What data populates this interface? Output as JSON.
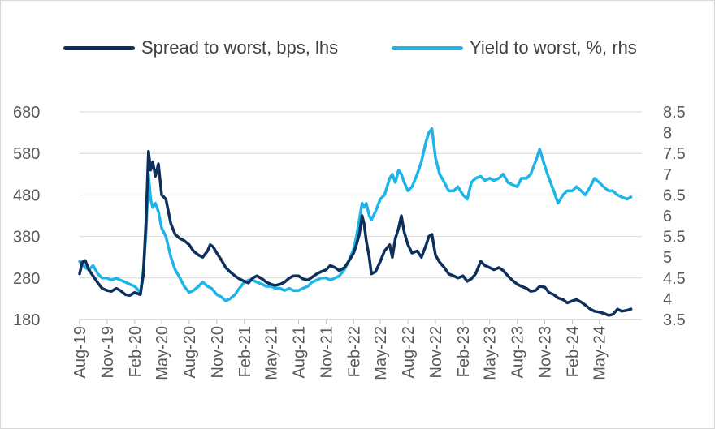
{
  "colors": {
    "spread": "#0d2f5c",
    "yield": "#1fb4e8",
    "grid": "#d9d9d9",
    "axis": "#bfbfbf"
  },
  "chart_data": {
    "type": "line",
    "legend_position": "top",
    "grid": true,
    "title": "",
    "x_ticks": [
      "Aug-19",
      "Nov-19",
      "Feb-20",
      "May-20",
      "Aug-20",
      "Nov-20",
      "Feb-21",
      "May-21",
      "Aug-21",
      "Nov-21",
      "Feb-22",
      "May-22",
      "Aug-22",
      "Nov-22",
      "Feb-23",
      "May-23",
      "Aug-23",
      "Nov-23",
      "Feb-24",
      "May-24"
    ],
    "y_left": {
      "min": 180,
      "max": 680,
      "ticks": [
        "180",
        "280",
        "380",
        "480",
        "580",
        "680"
      ]
    },
    "y_right": {
      "min": 3.5,
      "max": 8.5,
      "ticks": [
        "3.5",
        "4",
        "4.5",
        "5",
        "5.5",
        "6",
        "6.5",
        "7",
        "7.5",
        "8",
        "8.5"
      ]
    },
    "series": [
      {
        "name": "Spread to worst, bps, lhs",
        "axis": "left",
        "points": [
          [
            "2019-08-01",
            290
          ],
          [
            "2019-08-10",
            318
          ],
          [
            "2019-08-20",
            322
          ],
          [
            "2019-09-01",
            300
          ],
          [
            "2019-09-15",
            285
          ],
          [
            "2019-10-01",
            268
          ],
          [
            "2019-10-15",
            255
          ],
          [
            "2019-11-01",
            250
          ],
          [
            "2019-11-15",
            248
          ],
          [
            "2019-12-01",
            255
          ],
          [
            "2019-12-15",
            250
          ],
          [
            "2020-01-01",
            240
          ],
          [
            "2020-01-15",
            238
          ],
          [
            "2020-02-01",
            245
          ],
          [
            "2020-02-20",
            240
          ],
          [
            "2020-03-01",
            290
          ],
          [
            "2020-03-10",
            420
          ],
          [
            "2020-03-18",
            585
          ],
          [
            "2020-03-25",
            540
          ],
          [
            "2020-04-01",
            560
          ],
          [
            "2020-04-10",
            525
          ],
          [
            "2020-04-20",
            555
          ],
          [
            "2020-05-01",
            480
          ],
          [
            "2020-05-15",
            470
          ],
          [
            "2020-06-01",
            410
          ],
          [
            "2020-06-15",
            385
          ],
          [
            "2020-07-01",
            375
          ],
          [
            "2020-07-15",
            370
          ],
          [
            "2020-08-01",
            360
          ],
          [
            "2020-08-15",
            345
          ],
          [
            "2020-09-01",
            335
          ],
          [
            "2020-09-15",
            330
          ],
          [
            "2020-10-01",
            345
          ],
          [
            "2020-10-10",
            360
          ],
          [
            "2020-10-20",
            355
          ],
          [
            "2020-11-01",
            340
          ],
          [
            "2020-11-15",
            325
          ],
          [
            "2020-12-01",
            305
          ],
          [
            "2020-12-15",
            295
          ],
          [
            "2021-01-01",
            285
          ],
          [
            "2021-01-15",
            278
          ],
          [
            "2021-02-01",
            272
          ],
          [
            "2021-02-15",
            268
          ],
          [
            "2021-03-01",
            280
          ],
          [
            "2021-03-15",
            285
          ],
          [
            "2021-04-01",
            278
          ],
          [
            "2021-04-15",
            270
          ],
          [
            "2021-05-01",
            265
          ],
          [
            "2021-05-15",
            262
          ],
          [
            "2021-06-01",
            265
          ],
          [
            "2021-06-15",
            270
          ],
          [
            "2021-07-01",
            280
          ],
          [
            "2021-07-15",
            285
          ],
          [
            "2021-08-01",
            285
          ],
          [
            "2021-08-15",
            278
          ],
          [
            "2021-09-01",
            275
          ],
          [
            "2021-09-15",
            282
          ],
          [
            "2021-10-01",
            290
          ],
          [
            "2021-10-15",
            295
          ],
          [
            "2021-11-01",
            300
          ],
          [
            "2021-11-15",
            310
          ],
          [
            "2021-12-01",
            305
          ],
          [
            "2021-12-15",
            298
          ],
          [
            "2022-01-01",
            305
          ],
          [
            "2022-01-15",
            320
          ],
          [
            "2022-02-01",
            340
          ],
          [
            "2022-02-10",
            360
          ],
          [
            "2022-02-20",
            385
          ],
          [
            "2022-03-01",
            430
          ],
          [
            "2022-03-08",
            410
          ],
          [
            "2022-03-15",
            370
          ],
          [
            "2022-03-25",
            330
          ],
          [
            "2022-04-01",
            290
          ],
          [
            "2022-04-15",
            295
          ],
          [
            "2022-05-01",
            320
          ],
          [
            "2022-05-15",
            345
          ],
          [
            "2022-06-01",
            360
          ],
          [
            "2022-06-10",
            330
          ],
          [
            "2022-06-20",
            375
          ],
          [
            "2022-07-01",
            400
          ],
          [
            "2022-07-10",
            430
          ],
          [
            "2022-07-20",
            390
          ],
          [
            "2022-08-01",
            360
          ],
          [
            "2022-08-15",
            340
          ],
          [
            "2022-09-01",
            345
          ],
          [
            "2022-09-15",
            330
          ],
          [
            "2022-10-01",
            360
          ],
          [
            "2022-10-10",
            380
          ],
          [
            "2022-10-20",
            385
          ],
          [
            "2022-11-01",
            335
          ],
          [
            "2022-11-15",
            318
          ],
          [
            "2022-12-01",
            305
          ],
          [
            "2022-12-15",
            290
          ],
          [
            "2023-01-01",
            285
          ],
          [
            "2023-01-15",
            280
          ],
          [
            "2023-02-01",
            285
          ],
          [
            "2023-02-15",
            272
          ],
          [
            "2023-03-01",
            278
          ],
          [
            "2023-03-15",
            290
          ],
          [
            "2023-04-01",
            320
          ],
          [
            "2023-04-15",
            310
          ],
          [
            "2023-05-01",
            305
          ],
          [
            "2023-05-15",
            300
          ],
          [
            "2023-06-01",
            305
          ],
          [
            "2023-06-15",
            298
          ],
          [
            "2023-07-01",
            285
          ],
          [
            "2023-07-15",
            275
          ],
          [
            "2023-08-01",
            265
          ],
          [
            "2023-08-15",
            260
          ],
          [
            "2023-09-01",
            255
          ],
          [
            "2023-09-15",
            248
          ],
          [
            "2023-10-01",
            250
          ],
          [
            "2023-10-15",
            260
          ],
          [
            "2023-11-01",
            258
          ],
          [
            "2023-11-15",
            245
          ],
          [
            "2023-12-01",
            240
          ],
          [
            "2023-12-15",
            232
          ],
          [
            "2024-01-01",
            228
          ],
          [
            "2024-01-15",
            220
          ],
          [
            "2024-02-01",
            225
          ],
          [
            "2024-02-15",
            228
          ],
          [
            "2024-03-01",
            222
          ],
          [
            "2024-03-15",
            215
          ],
          [
            "2024-04-01",
            205
          ],
          [
            "2024-04-15",
            200
          ],
          [
            "2024-05-01",
            198
          ],
          [
            "2024-05-15",
            195
          ],
          [
            "2024-06-01",
            190
          ],
          [
            "2024-06-15",
            192
          ],
          [
            "2024-07-01",
            205
          ],
          [
            "2024-07-15",
            200
          ],
          [
            "2024-08-01",
            202
          ],
          [
            "2024-08-15",
            205
          ]
        ]
      },
      {
        "name": "Yield to worst, %, rhs",
        "axis": "right",
        "points": [
          [
            "2019-08-01",
            4.9
          ],
          [
            "2019-08-10",
            4.85
          ],
          [
            "2019-08-20",
            4.75
          ],
          [
            "2019-09-01",
            4.7
          ],
          [
            "2019-09-15",
            4.8
          ],
          [
            "2019-10-01",
            4.6
          ],
          [
            "2019-10-15",
            4.5
          ],
          [
            "2019-11-01",
            4.5
          ],
          [
            "2019-11-15",
            4.45
          ],
          [
            "2019-12-01",
            4.5
          ],
          [
            "2019-12-15",
            4.45
          ],
          [
            "2020-01-01",
            4.4
          ],
          [
            "2020-01-15",
            4.35
          ],
          [
            "2020-02-01",
            4.3
          ],
          [
            "2020-02-20",
            4.15
          ],
          [
            "2020-03-01",
            4.7
          ],
          [
            "2020-03-10",
            5.6
          ],
          [
            "2020-03-18",
            7.0
          ],
          [
            "2020-03-25",
            6.4
          ],
          [
            "2020-04-01",
            6.2
          ],
          [
            "2020-04-10",
            6.3
          ],
          [
            "2020-04-20",
            6.1
          ],
          [
            "2020-05-01",
            5.7
          ],
          [
            "2020-05-15",
            5.5
          ],
          [
            "2020-06-01",
            5.0
          ],
          [
            "2020-06-15",
            4.7
          ],
          [
            "2020-07-01",
            4.5
          ],
          [
            "2020-07-15",
            4.3
          ],
          [
            "2020-08-01",
            4.15
          ],
          [
            "2020-08-15",
            4.2
          ],
          [
            "2020-09-01",
            4.3
          ],
          [
            "2020-09-15",
            4.4
          ],
          [
            "2020-10-01",
            4.3
          ],
          [
            "2020-10-15",
            4.25
          ],
          [
            "2020-11-01",
            4.1
          ],
          [
            "2020-11-15",
            4.05
          ],
          [
            "2020-12-01",
            3.95
          ],
          [
            "2020-12-15",
            4.0
          ],
          [
            "2021-01-01",
            4.1
          ],
          [
            "2021-01-15",
            4.25
          ],
          [
            "2021-02-01",
            4.4
          ],
          [
            "2021-02-15",
            4.45
          ],
          [
            "2021-03-01",
            4.45
          ],
          [
            "2021-03-15",
            4.4
          ],
          [
            "2021-04-01",
            4.35
          ],
          [
            "2021-04-15",
            4.3
          ],
          [
            "2021-05-01",
            4.3
          ],
          [
            "2021-05-15",
            4.25
          ],
          [
            "2021-06-01",
            4.25
          ],
          [
            "2021-06-15",
            4.2
          ],
          [
            "2021-07-01",
            4.25
          ],
          [
            "2021-07-15",
            4.2
          ],
          [
            "2021-08-01",
            4.2
          ],
          [
            "2021-08-15",
            4.25
          ],
          [
            "2021-09-01",
            4.3
          ],
          [
            "2021-09-15",
            4.4
          ],
          [
            "2021-10-01",
            4.45
          ],
          [
            "2021-10-15",
            4.5
          ],
          [
            "2021-11-01",
            4.5
          ],
          [
            "2021-11-15",
            4.45
          ],
          [
            "2021-12-01",
            4.5
          ],
          [
            "2021-12-15",
            4.55
          ],
          [
            "2022-01-01",
            4.7
          ],
          [
            "2022-01-15",
            4.9
          ],
          [
            "2022-02-01",
            5.2
          ],
          [
            "2022-02-10",
            5.5
          ],
          [
            "2022-02-20",
            5.9
          ],
          [
            "2022-03-01",
            6.3
          ],
          [
            "2022-03-08",
            6.2
          ],
          [
            "2022-03-15",
            6.3
          ],
          [
            "2022-03-25",
            6.0
          ],
          [
            "2022-04-01",
            5.9
          ],
          [
            "2022-04-15",
            6.1
          ],
          [
            "2022-05-01",
            6.4
          ],
          [
            "2022-05-15",
            6.5
          ],
          [
            "2022-06-01",
            6.9
          ],
          [
            "2022-06-10",
            7.0
          ],
          [
            "2022-06-20",
            6.8
          ],
          [
            "2022-07-01",
            7.1
          ],
          [
            "2022-07-10",
            7.0
          ],
          [
            "2022-07-20",
            6.8
          ],
          [
            "2022-08-01",
            6.6
          ],
          [
            "2022-08-15",
            6.7
          ],
          [
            "2022-09-01",
            7.0
          ],
          [
            "2022-09-15",
            7.3
          ],
          [
            "2022-10-01",
            7.8
          ],
          [
            "2022-10-10",
            8.0
          ],
          [
            "2022-10-20",
            8.1
          ],
          [
            "2022-11-01",
            7.4
          ],
          [
            "2022-11-15",
            7.0
          ],
          [
            "2022-12-01",
            6.8
          ],
          [
            "2022-12-15",
            6.6
          ],
          [
            "2023-01-01",
            6.6
          ],
          [
            "2023-01-15",
            6.7
          ],
          [
            "2023-02-01",
            6.5
          ],
          [
            "2023-02-15",
            6.4
          ],
          [
            "2023-03-01",
            6.8
          ],
          [
            "2023-03-15",
            6.9
          ],
          [
            "2023-04-01",
            6.95
          ],
          [
            "2023-04-15",
            6.85
          ],
          [
            "2023-05-01",
            6.9
          ],
          [
            "2023-05-15",
            6.85
          ],
          [
            "2023-06-01",
            6.9
          ],
          [
            "2023-06-15",
            7.0
          ],
          [
            "2023-07-01",
            6.8
          ],
          [
            "2023-07-15",
            6.75
          ],
          [
            "2023-08-01",
            6.7
          ],
          [
            "2023-08-15",
            6.9
          ],
          [
            "2023-09-01",
            6.9
          ],
          [
            "2023-09-15",
            7.0
          ],
          [
            "2023-10-01",
            7.3
          ],
          [
            "2023-10-15",
            7.6
          ],
          [
            "2023-11-01",
            7.2
          ],
          [
            "2023-11-15",
            6.9
          ],
          [
            "2023-12-01",
            6.6
          ],
          [
            "2023-12-15",
            6.3
          ],
          [
            "2024-01-01",
            6.5
          ],
          [
            "2024-01-15",
            6.6
          ],
          [
            "2024-02-01",
            6.6
          ],
          [
            "2024-02-15",
            6.7
          ],
          [
            "2024-03-01",
            6.6
          ],
          [
            "2024-03-15",
            6.5
          ],
          [
            "2024-04-01",
            6.7
          ],
          [
            "2024-04-15",
            6.9
          ],
          [
            "2024-05-01",
            6.8
          ],
          [
            "2024-05-15",
            6.7
          ],
          [
            "2024-06-01",
            6.6
          ],
          [
            "2024-06-15",
            6.6
          ],
          [
            "2024-07-01",
            6.5
          ],
          [
            "2024-07-15",
            6.45
          ],
          [
            "2024-08-01",
            6.4
          ],
          [
            "2024-08-15",
            6.45
          ]
        ]
      }
    ]
  }
}
